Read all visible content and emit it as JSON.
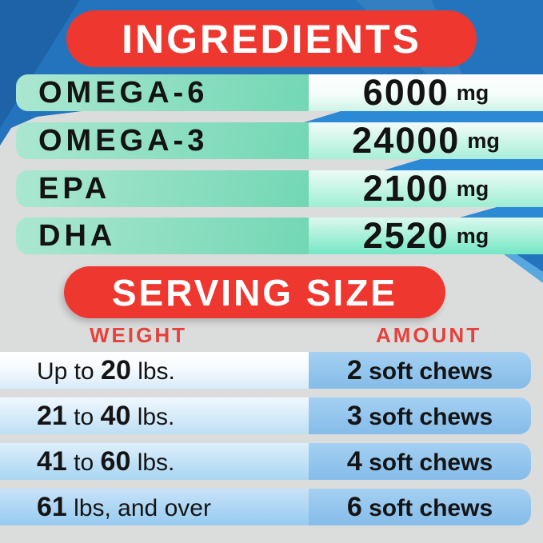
{
  "colors": {
    "background_blue": "#2374bd",
    "panel_gray": "#dbdcdc",
    "chevron_blue": "#2b89d6",
    "banner_red": "#ee382f",
    "header_red": "#e6413a",
    "ingredient_green": "#7fdcbd",
    "serving_blue": "#85bce9"
  },
  "ingredients": {
    "title": "INGREDIENTS",
    "rows": [
      {
        "name": "OMEGA-6",
        "value": "6000",
        "unit": "mg"
      },
      {
        "name": "OMEGA-3",
        "value": "24000",
        "unit": "mg"
      },
      {
        "name": "EPA",
        "value": "2100",
        "unit": "mg"
      },
      {
        "name": "DHA",
        "value": "2520",
        "unit": "mg"
      }
    ]
  },
  "serving": {
    "title": "SERVING SIZE",
    "columns": {
      "weight": "WEIGHT",
      "amount": "AMOUNT"
    },
    "rows": [
      {
        "weight": [
          {
            "text": "Up to ",
            "bold": false
          },
          {
            "text": "20",
            "bold": true
          },
          {
            "text": " lbs.",
            "bold": false
          }
        ],
        "amount": [
          {
            "text": "2",
            "bold": true
          },
          {
            "text": " soft chews",
            "bold": false
          }
        ]
      },
      {
        "weight": [
          {
            "text": "21",
            "bold": true
          },
          {
            "text": " to ",
            "bold": false
          },
          {
            "text": "40",
            "bold": true
          },
          {
            "text": " lbs.",
            "bold": false
          }
        ],
        "amount": [
          {
            "text": "3",
            "bold": true
          },
          {
            "text": " soft chews",
            "bold": false
          }
        ]
      },
      {
        "weight": [
          {
            "text": "41",
            "bold": true
          },
          {
            "text": " to ",
            "bold": false
          },
          {
            "text": "60",
            "bold": true
          },
          {
            "text": " lbs.",
            "bold": false
          }
        ],
        "amount": [
          {
            "text": "4",
            "bold": true
          },
          {
            "text": " soft chews",
            "bold": false
          }
        ]
      },
      {
        "weight": [
          {
            "text": "61",
            "bold": true
          },
          {
            "text": " lbs, and over",
            "bold": false
          }
        ],
        "amount": [
          {
            "text": "6",
            "bold": true
          },
          {
            "text": " soft chews",
            "bold": false
          }
        ]
      }
    ]
  }
}
